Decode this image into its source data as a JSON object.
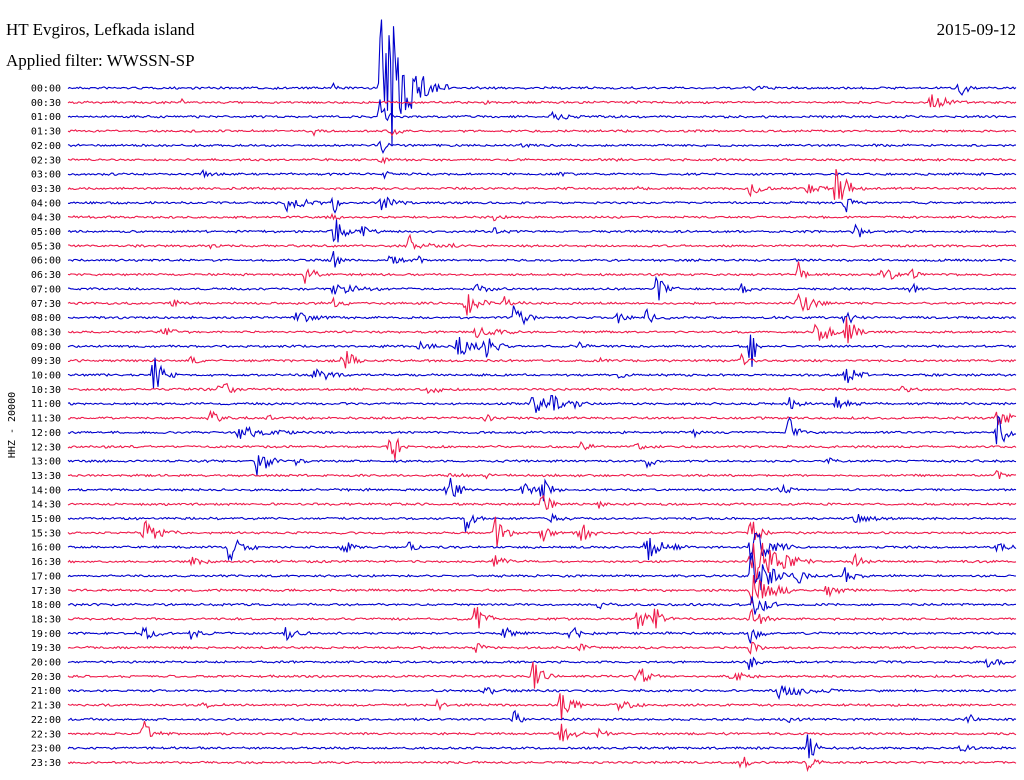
{
  "header": {
    "station": "HT Evgiros, Lefkada island",
    "date": "2015-09-12",
    "filter": "Applied filter: WWSSN-SP"
  },
  "chart_data": {
    "type": "line",
    "ylabel": "HHZ - 20000",
    "colors": [
      "#0000cc",
      "#ee1b4b"
    ],
    "rows": [
      {
        "label": "00:00",
        "events": [
          [
            0.33,
            90,
            6
          ],
          [
            0.34,
            60,
            20
          ],
          [
            0.72,
            3,
            8
          ],
          [
            0.94,
            10,
            6
          ],
          [
            0.28,
            4,
            3
          ]
        ]
      },
      {
        "label": "00:30",
        "events": [
          [
            0.91,
            8,
            14
          ],
          [
            0.12,
            3,
            3
          ],
          [
            0.44,
            2,
            3
          ]
        ]
      },
      {
        "label": "01:00",
        "events": [
          [
            0.51,
            7,
            10
          ],
          [
            0.33,
            30,
            4
          ]
        ]
      },
      {
        "label": "01:30",
        "events": [
          [
            0.26,
            4,
            3
          ],
          [
            0.34,
            6,
            6
          ]
        ]
      },
      {
        "label": "02:00",
        "events": [
          [
            0.33,
            12,
            4
          ],
          [
            0.48,
            3,
            4
          ]
        ]
      },
      {
        "label": "02:30",
        "events": [
          [
            0.33,
            8,
            3
          ],
          [
            0.58,
            2,
            3
          ]
        ]
      },
      {
        "label": "03:00",
        "events": [
          [
            0.14,
            4,
            6
          ],
          [
            0.33,
            10,
            4
          ],
          [
            0.52,
            3,
            4
          ]
        ]
      },
      {
        "label": "03:30",
        "events": [
          [
            0.72,
            8,
            8
          ],
          [
            0.81,
            22,
            10
          ],
          [
            0.78,
            5,
            12
          ],
          [
            0.6,
            3,
            6
          ]
        ]
      },
      {
        "label": "04:00",
        "events": [
          [
            0.23,
            9,
            14
          ],
          [
            0.28,
            16,
            3
          ],
          [
            0.33,
            8,
            10
          ],
          [
            0.82,
            14,
            4
          ]
        ]
      },
      {
        "label": "04:30",
        "events": [
          [
            0.28,
            6,
            4
          ],
          [
            0.45,
            3,
            6
          ]
        ]
      },
      {
        "label": "05:00",
        "events": [
          [
            0.28,
            18,
            8
          ],
          [
            0.83,
            14,
            6
          ],
          [
            0.31,
            5,
            8
          ],
          [
            0.45,
            4,
            6
          ]
        ]
      },
      {
        "label": "05:30",
        "events": [
          [
            0.36,
            12,
            10
          ],
          [
            0.4,
            4,
            6
          ],
          [
            0.15,
            3,
            4
          ]
        ]
      },
      {
        "label": "06:00",
        "events": [
          [
            0.28,
            14,
            4
          ],
          [
            0.34,
            5,
            10
          ],
          [
            0.37,
            5,
            4
          ]
        ]
      },
      {
        "label": "06:30",
        "events": [
          [
            0.25,
            10,
            10
          ],
          [
            0.77,
            14,
            4
          ],
          [
            0.86,
            18,
            6
          ],
          [
            0.89,
            8,
            4
          ]
        ]
      },
      {
        "label": "07:00",
        "events": [
          [
            0.28,
            6,
            20
          ],
          [
            0.43,
            5,
            10
          ],
          [
            0.62,
            16,
            8
          ],
          [
            0.71,
            6,
            8
          ],
          [
            0.89,
            8,
            6
          ]
        ]
      },
      {
        "label": "07:30",
        "events": [
          [
            0.11,
            5,
            6
          ],
          [
            0.28,
            6,
            6
          ],
          [
            0.42,
            14,
            10
          ],
          [
            0.46,
            7,
            10
          ],
          [
            0.77,
            18,
            10
          ]
        ]
      },
      {
        "label": "08:00",
        "events": [
          [
            0.24,
            6,
            14
          ],
          [
            0.47,
            18,
            8
          ],
          [
            0.58,
            6,
            6
          ],
          [
            0.61,
            10,
            8
          ],
          [
            0.82,
            10,
            6
          ]
        ]
      },
      {
        "label": "08:30",
        "events": [
          [
            0.1,
            4,
            10
          ],
          [
            0.43,
            5,
            20
          ],
          [
            0.79,
            20,
            8
          ],
          [
            0.82,
            18,
            8
          ]
        ]
      },
      {
        "label": "09:00",
        "events": [
          [
            0.37,
            6,
            10
          ],
          [
            0.41,
            12,
            14
          ],
          [
            0.44,
            14,
            8
          ],
          [
            0.54,
            4,
            6
          ],
          [
            0.72,
            30,
            4
          ]
        ]
      },
      {
        "label": "09:30",
        "events": [
          [
            0.13,
            4,
            6
          ],
          [
            0.29,
            16,
            8
          ],
          [
            0.56,
            3,
            4
          ],
          [
            0.71,
            6,
            6
          ]
        ]
      },
      {
        "label": "10:00",
        "events": [
          [
            0.09,
            20,
            8
          ],
          [
            0.26,
            12,
            10
          ],
          [
            0.82,
            14,
            8
          ],
          [
            0.58,
            4,
            6
          ]
        ]
      },
      {
        "label": "10:30",
        "events": [
          [
            0.16,
            12,
            8
          ],
          [
            0.38,
            4,
            12
          ],
          [
            0.88,
            3,
            8
          ]
        ]
      },
      {
        "label": "11:00",
        "events": [
          [
            0.49,
            16,
            8
          ],
          [
            0.51,
            8,
            10
          ],
          [
            0.53,
            6,
            8
          ],
          [
            0.76,
            8,
            6
          ],
          [
            0.81,
            6,
            10
          ]
        ]
      },
      {
        "label": "11:30",
        "events": [
          [
            0.15,
            8,
            8
          ],
          [
            0.21,
            5,
            4
          ],
          [
            0.44,
            5,
            6
          ],
          [
            0.98,
            14,
            8
          ]
        ]
      },
      {
        "label": "12:00",
        "events": [
          [
            0.18,
            8,
            20
          ],
          [
            0.76,
            18,
            6
          ],
          [
            0.98,
            20,
            8
          ],
          [
            0.66,
            5,
            6
          ]
        ]
      },
      {
        "label": "12:30",
        "events": [
          [
            0.34,
            26,
            6
          ],
          [
            0.54,
            6,
            8
          ],
          [
            0.6,
            4,
            6
          ]
        ]
      },
      {
        "label": "13:00",
        "events": [
          [
            0.2,
            18,
            8
          ],
          [
            0.24,
            4,
            6
          ],
          [
            0.61,
            8,
            6
          ],
          [
            0.8,
            4,
            6
          ]
        ]
      },
      {
        "label": "13:30",
        "events": [
          [
            0.4,
            4,
            8
          ],
          [
            0.44,
            3,
            6
          ],
          [
            0.98,
            6,
            6
          ]
        ]
      },
      {
        "label": "14:00",
        "events": [
          [
            0.4,
            18,
            8
          ],
          [
            0.48,
            6,
            12
          ],
          [
            0.5,
            14,
            6
          ],
          [
            0.75,
            8,
            6
          ]
        ]
      },
      {
        "label": "14:30",
        "events": [
          [
            0.5,
            16,
            6
          ],
          [
            0.56,
            4,
            6
          ]
        ]
      },
      {
        "label": "15:00",
        "events": [
          [
            0.42,
            16,
            6
          ],
          [
            0.51,
            5,
            8
          ],
          [
            0.83,
            5,
            12
          ]
        ]
      },
      {
        "label": "15:30",
        "events": [
          [
            0.08,
            14,
            12
          ],
          [
            0.45,
            18,
            8
          ],
          [
            0.5,
            10,
            6
          ],
          [
            0.54,
            12,
            8
          ],
          [
            0.72,
            20,
            6
          ]
        ]
      },
      {
        "label": "16:00",
        "events": [
          [
            0.17,
            14,
            10
          ],
          [
            0.29,
            10,
            6
          ],
          [
            0.36,
            6,
            6
          ],
          [
            0.61,
            14,
            14
          ],
          [
            0.72,
            30,
            14
          ],
          [
            0.98,
            5,
            8
          ]
        ]
      },
      {
        "label": "16:30",
        "events": [
          [
            0.13,
            4,
            12
          ],
          [
            0.45,
            8,
            8
          ],
          [
            0.72,
            34,
            20
          ],
          [
            0.83,
            10,
            6
          ]
        ]
      },
      {
        "label": "17:00",
        "events": [
          [
            0.72,
            30,
            16
          ],
          [
            0.77,
            8,
            8
          ],
          [
            0.82,
            14,
            6
          ]
        ]
      },
      {
        "label": "17:30",
        "events": [
          [
            0.11,
            3,
            4
          ],
          [
            0.72,
            26,
            14
          ],
          [
            0.8,
            6,
            10
          ]
        ]
      },
      {
        "label": "18:00",
        "events": [
          [
            0.72,
            20,
            10
          ],
          [
            0.56,
            4,
            6
          ]
        ]
      },
      {
        "label": "18:30",
        "events": [
          [
            0.43,
            18,
            8
          ],
          [
            0.6,
            16,
            8
          ],
          [
            0.62,
            14,
            6
          ],
          [
            0.72,
            16,
            8
          ]
        ]
      },
      {
        "label": "19:00",
        "events": [
          [
            0.08,
            6,
            10
          ],
          [
            0.13,
            6,
            8
          ],
          [
            0.23,
            8,
            8
          ],
          [
            0.46,
            6,
            10
          ],
          [
            0.53,
            8,
            8
          ],
          [
            0.72,
            14,
            6
          ]
        ]
      },
      {
        "label": "19:30",
        "events": [
          [
            0.43,
            6,
            6
          ],
          [
            0.54,
            4,
            6
          ],
          [
            0.72,
            10,
            6
          ]
        ]
      },
      {
        "label": "20:00",
        "events": [
          [
            0.72,
            16,
            4
          ],
          [
            0.97,
            4,
            16
          ]
        ]
      },
      {
        "label": "20:30",
        "events": [
          [
            0.49,
            16,
            8
          ],
          [
            0.6,
            14,
            8
          ],
          [
            0.7,
            6,
            10
          ]
        ]
      },
      {
        "label": "21:00",
        "events": [
          [
            0.44,
            4,
            12
          ],
          [
            0.75,
            8,
            20
          ]
        ]
      },
      {
        "label": "21:30",
        "events": [
          [
            0.14,
            4,
            8
          ],
          [
            0.39,
            6,
            4
          ],
          [
            0.52,
            20,
            8
          ],
          [
            0.58,
            6,
            10
          ]
        ]
      },
      {
        "label": "22:00",
        "events": [
          [
            0.47,
            14,
            4
          ],
          [
            0.76,
            4,
            8
          ],
          [
            0.95,
            6,
            4
          ]
        ]
      },
      {
        "label": "22:30",
        "events": [
          [
            0.08,
            16,
            6
          ],
          [
            0.52,
            14,
            8
          ],
          [
            0.56,
            4,
            6
          ]
        ]
      },
      {
        "label": "23:00",
        "events": [
          [
            0.78,
            16,
            6
          ],
          [
            0.94,
            6,
            8
          ]
        ]
      },
      {
        "label": "23:30",
        "events": [
          [
            0.78,
            12,
            6
          ],
          [
            0.71,
            16,
            4
          ]
        ]
      }
    ]
  }
}
